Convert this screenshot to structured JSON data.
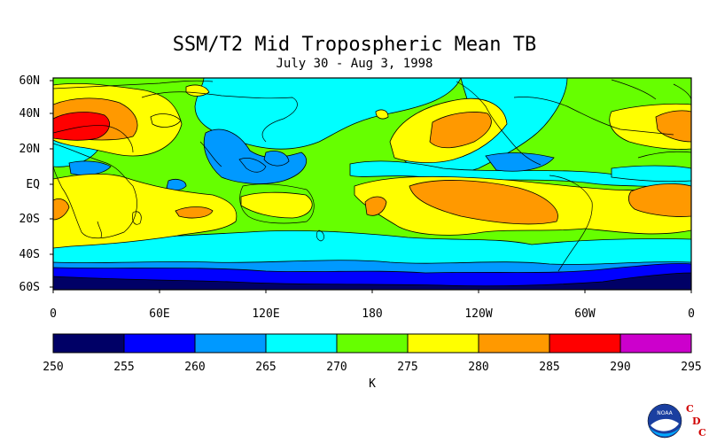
{
  "title": "SSM/T2 Mid Tropospheric Mean TB",
  "subtitle": "July 30 - Aug 3, 1998",
  "map": {
    "lat_labels": [
      "60N",
      "40N",
      "20N",
      "EQ",
      "20S",
      "40S",
      "60S"
    ],
    "lon_labels": [
      "0",
      "60E",
      "120E",
      "180",
      "120W",
      "60W",
      "0"
    ]
  },
  "colorbar": {
    "ticks": [
      "250",
      "255",
      "260",
      "265",
      "270",
      "275",
      "280",
      "285",
      "290",
      "295"
    ],
    "colors": [
      "#000066",
      "#0000ff",
      "#0099ff",
      "#00ffff",
      "#66ff00",
      "#ffff00",
      "#ff9900",
      "#ff0000",
      "#cc00cc"
    ],
    "unit": "K"
  },
  "logo": {
    "noaa": "NOAA",
    "cdc_letters": [
      "C",
      "D",
      "C"
    ]
  }
}
